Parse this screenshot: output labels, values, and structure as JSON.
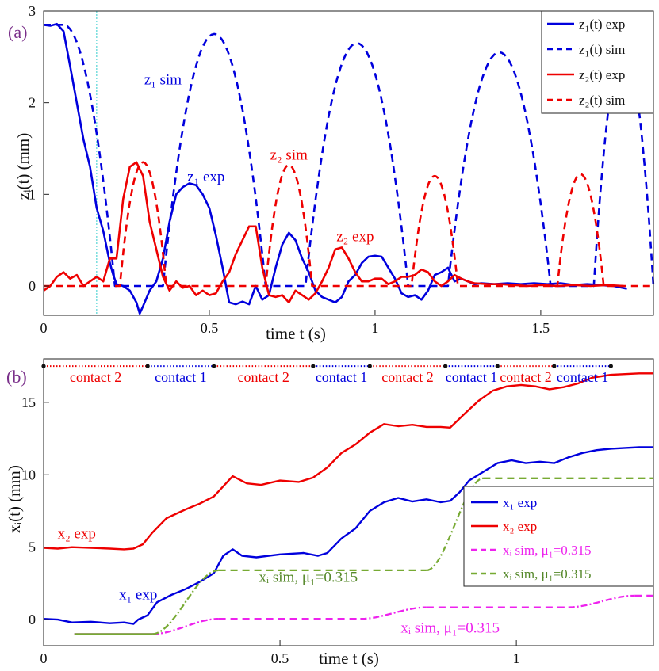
{
  "chart_data": [
    {
      "type": "line",
      "panel_label": "(a)",
      "xlabel": "time t (s)",
      "ylabel": "zᵢ(t) (mm)",
      "xlim": [
        0,
        1.84
      ],
      "ylim": [
        -0.32,
        3.0
      ],
      "xticks": [
        0,
        0.5,
        1,
        1.5
      ],
      "xtick_labels": [
        "0",
        "0.5",
        "1",
        "1.5"
      ],
      "yticks": [
        0,
        1,
        2,
        3
      ],
      "ytick_labels": [
        "0",
        "1",
        "2",
        "3"
      ],
      "vline_x": 0.16,
      "legend": [
        "z₁(t) exp",
        "z₁(t) sim",
        "z₂(t) exp",
        "z₂(t) sim"
      ],
      "annotations": [
        {
          "text": "z₁ sim",
          "x": 0.36,
          "y": 2.2,
          "color": "blue"
        },
        {
          "text": "z₁ exp",
          "x": 0.49,
          "y": 1.14,
          "color": "blue"
        },
        {
          "text": "z₂ sim",
          "x": 0.74,
          "y": 1.38,
          "color": "red"
        },
        {
          "text": "z₂ exp",
          "x": 0.94,
          "y": 0.49,
          "color": "red"
        }
      ],
      "series": [
        {
          "name": "z₁(t) exp",
          "color": "#0000dd",
          "dash": false,
          "x": [
            0,
            0.02,
            0.04,
            0.06,
            0.08,
            0.1,
            0.12,
            0.14,
            0.16,
            0.18,
            0.2,
            0.21,
            0.22,
            0.24,
            0.26,
            0.28,
            0.29,
            0.3,
            0.32,
            0.34,
            0.36,
            0.38,
            0.4,
            0.42,
            0.44,
            0.46,
            0.48,
            0.5,
            0.52,
            0.54,
            0.56,
            0.58,
            0.6,
            0.62,
            0.64,
            0.66,
            0.68,
            0.7,
            0.72,
            0.74,
            0.76,
            0.78,
            0.8,
            0.82,
            0.84,
            0.86,
            0.88,
            0.9,
            0.92,
            0.94,
            0.96,
            0.98,
            1.0,
            1.02,
            1.04,
            1.06,
            1.08,
            1.1,
            1.12,
            1.14,
            1.16,
            1.18,
            1.2,
            1.22,
            1.24,
            1.26,
            1.28,
            1.3,
            1.32,
            1.36,
            1.4,
            1.44,
            1.48,
            1.52,
            1.56,
            1.6,
            1.64,
            1.68,
            1.72,
            1.76
          ],
          "y": [
            2.85,
            2.84,
            2.86,
            2.78,
            2.4,
            2.0,
            1.6,
            1.3,
            0.85,
            0.6,
            0.25,
            0.12,
            0.02,
            0.0,
            -0.05,
            -0.18,
            -0.3,
            -0.22,
            -0.05,
            0.05,
            0.3,
            0.7,
            1.0,
            1.08,
            1.12,
            1.1,
            1.0,
            0.85,
            0.55,
            0.2,
            -0.18,
            -0.2,
            -0.17,
            -0.2,
            0.0,
            -0.15,
            -0.1,
            0.2,
            0.45,
            0.58,
            0.5,
            0.3,
            0.15,
            -0.05,
            -0.12,
            -0.15,
            -0.18,
            -0.12,
            0.05,
            0.12,
            0.25,
            0.32,
            0.33,
            0.32,
            0.2,
            0.08,
            -0.08,
            -0.12,
            -0.1,
            -0.15,
            -0.05,
            0.12,
            0.15,
            0.2,
            0.05,
            0.08,
            0.05,
            0.02,
            0.03,
            0.02,
            0.03,
            0.02,
            0.03,
            0.02,
            0.03,
            0.01,
            0.02,
            0.01,
            0.0,
            -0.03
          ]
        },
        {
          "name": "z₁(t) sim",
          "color": "#0000dd",
          "dash": true,
          "model": "bounce",
          "start": 0.0,
          "start_y": 2.85,
          "drop_from": 0.06,
          "drop_to": 0.215,
          "arcs": [
            [
              0.36,
              0.67,
              2.75
            ],
            [
              0.79,
              1.1,
              2.65
            ],
            [
              1.22,
              1.53,
              2.55
            ],
            [
              1.66,
              1.84,
              2.6
            ]
          ]
        },
        {
          "name": "z₂(t) exp",
          "color": "#ee0000",
          "dash": false,
          "x": [
            0,
            0.02,
            0.04,
            0.06,
            0.08,
            0.1,
            0.12,
            0.14,
            0.16,
            0.18,
            0.2,
            0.22,
            0.24,
            0.26,
            0.28,
            0.3,
            0.32,
            0.34,
            0.36,
            0.38,
            0.4,
            0.42,
            0.44,
            0.46,
            0.48,
            0.5,
            0.52,
            0.54,
            0.56,
            0.58,
            0.6,
            0.62,
            0.64,
            0.66,
            0.68,
            0.7,
            0.72,
            0.74,
            0.76,
            0.78,
            0.8,
            0.82,
            0.84,
            0.86,
            0.88,
            0.9,
            0.92,
            0.94,
            0.96,
            0.98,
            1.0,
            1.02,
            1.04,
            1.06,
            1.08,
            1.1,
            1.12,
            1.14,
            1.16,
            1.18,
            1.2,
            1.22,
            1.24,
            1.26,
            1.28,
            1.3,
            1.34,
            1.38,
            1.42,
            1.46,
            1.5,
            1.55,
            1.6,
            1.65,
            1.7,
            1.75
          ],
          "y": [
            -0.05,
            0.0,
            0.1,
            0.15,
            0.08,
            0.12,
            0.0,
            0.05,
            0.1,
            0.05,
            0.3,
            0.3,
            0.95,
            1.3,
            1.35,
            1.2,
            0.7,
            0.4,
            0.1,
            -0.05,
            0.05,
            -0.02,
            0.0,
            -0.1,
            -0.05,
            -0.1,
            -0.08,
            0.05,
            0.15,
            0.35,
            0.5,
            0.65,
            0.65,
            0.2,
            -0.1,
            -0.12,
            -0.1,
            -0.18,
            -0.05,
            -0.1,
            -0.15,
            -0.08,
            0.05,
            0.2,
            0.4,
            0.42,
            0.3,
            0.15,
            0.05,
            0.05,
            0.08,
            0.08,
            0.02,
            0.05,
            0.1,
            0.1,
            0.12,
            0.18,
            0.15,
            0.05,
            0.0,
            0.05,
            0.12,
            0.08,
            0.05,
            0.03,
            0.02,
            0.02,
            0.01,
            0.0,
            0.01,
            0.0,
            0.01,
            0.0,
            0.01,
            0.0
          ]
        },
        {
          "name": "z₂(t) sim",
          "color": "#ee0000",
          "dash": true,
          "model": "bounce",
          "start": 0.0,
          "start_y": 0.0,
          "arcs": [
            [
              0.23,
              0.37,
              1.35
            ],
            [
              0.67,
              0.81,
              1.32
            ],
            [
              1.11,
              1.25,
              1.2
            ],
            [
              1.55,
              1.69,
              1.22
            ]
          ]
        }
      ]
    },
    {
      "type": "line",
      "panel_label": "(b)",
      "xlabel": "time t (s)",
      "ylabel": "xᵢ(t) (mm)",
      "xlim": [
        0,
        1.29
      ],
      "ylim": [
        -1.8,
        18.0
      ],
      "xticks": [
        0,
        0.5,
        1
      ],
      "xtick_labels": [
        "0",
        "0.5",
        "1"
      ],
      "yticks": [
        0,
        5,
        10,
        15
      ],
      "ytick_labels": [
        "0",
        "5",
        "10",
        "15"
      ],
      "legend": [
        "x₁ exp",
        "x₂ exp",
        "xᵢ sim, μ₁=0.315",
        "xᵢ sim, μ₁=0.315"
      ],
      "annotations": [
        {
          "text": "x₂ exp",
          "x": 0.07,
          "y": 5.6,
          "color": "red"
        },
        {
          "text": "x₁ exp",
          "x": 0.2,
          "y": 1.4,
          "color": "blue"
        },
        {
          "text": "xᵢ sim, μ₁=0.315",
          "x": 0.56,
          "y": 2.6,
          "color": "green"
        },
        {
          "text": "xᵢ sim, μ₁=0.315",
          "x": 0.86,
          "y": -0.9,
          "color": "magenta"
        }
      ],
      "contact_phases": [
        {
          "label": "contact 2",
          "start": 0.0,
          "end": 0.22,
          "color": "red"
        },
        {
          "label": "contact 1",
          "start": 0.22,
          "end": 0.36,
          "color": "blue"
        },
        {
          "label": "contact 2",
          "start": 0.36,
          "end": 0.57,
          "color": "red"
        },
        {
          "label": "contact 1",
          "start": 0.57,
          "end": 0.69,
          "color": "blue"
        },
        {
          "label": "contact 2",
          "start": 0.69,
          "end": 0.85,
          "color": "red"
        },
        {
          "label": "contact 1",
          "start": 0.85,
          "end": 0.96,
          "color": "blue"
        },
        {
          "label": "contact 2",
          "start": 0.96,
          "end": 1.08,
          "color": "red"
        },
        {
          "label": "contact 1",
          "start": 1.08,
          "end": 1.2,
          "color": "blue"
        }
      ],
      "contact_y": 17.5,
      "series": [
        {
          "name": "x₁ exp",
          "color": "#0000dd",
          "dash": false,
          "x": [
            0,
            0.03,
            0.06,
            0.1,
            0.14,
            0.17,
            0.19,
            0.2,
            0.22,
            0.24,
            0.27,
            0.3,
            0.33,
            0.36,
            0.38,
            0.4,
            0.42,
            0.45,
            0.5,
            0.55,
            0.58,
            0.6,
            0.63,
            0.66,
            0.69,
            0.72,
            0.75,
            0.78,
            0.81,
            0.84,
            0.86,
            0.88,
            0.9,
            0.93,
            0.96,
            0.99,
            1.02,
            1.05,
            1.08,
            1.11,
            1.14,
            1.17,
            1.2,
            1.23,
            1.26,
            1.29
          ],
          "y": [
            0.05,
            0.0,
            -0.2,
            -0.15,
            -0.25,
            -0.2,
            -0.3,
            0.0,
            0.3,
            1.2,
            1.7,
            2.1,
            2.6,
            3.2,
            4.4,
            4.85,
            4.4,
            4.3,
            4.5,
            4.6,
            4.4,
            4.6,
            5.6,
            6.3,
            7.5,
            8.1,
            8.4,
            8.15,
            8.3,
            8.1,
            8.2,
            8.8,
            9.6,
            10.2,
            10.8,
            11.0,
            10.8,
            10.9,
            10.8,
            11.2,
            11.5,
            11.7,
            11.8,
            11.85,
            11.9,
            11.9
          ]
        },
        {
          "name": "x₂ exp",
          "color": "#ee0000",
          "dash": false,
          "x": [
            0,
            0.03,
            0.06,
            0.1,
            0.14,
            0.17,
            0.19,
            0.21,
            0.23,
            0.26,
            0.3,
            0.33,
            0.36,
            0.38,
            0.4,
            0.43,
            0.46,
            0.5,
            0.54,
            0.57,
            0.6,
            0.63,
            0.66,
            0.69,
            0.72,
            0.75,
            0.78,
            0.81,
            0.84,
            0.86,
            0.89,
            0.92,
            0.95,
            0.98,
            1.01,
            1.04,
            1.07,
            1.1,
            1.13,
            1.16,
            1.2,
            1.23,
            1.26,
            1.29
          ],
          "y": [
            4.95,
            4.9,
            5.0,
            4.95,
            4.9,
            4.85,
            4.9,
            5.2,
            6.0,
            7.0,
            7.6,
            8.0,
            8.5,
            9.2,
            9.9,
            9.4,
            9.3,
            9.6,
            9.5,
            9.8,
            10.5,
            11.5,
            12.1,
            12.9,
            13.5,
            13.35,
            13.45,
            13.3,
            13.3,
            13.25,
            14.2,
            15.1,
            15.8,
            16.1,
            16.2,
            16.1,
            15.9,
            16.05,
            16.3,
            16.7,
            16.9,
            16.95,
            17.0,
            17.0
          ]
        },
        {
          "name": "xᵢ sim, μ₁=0.315 (magenta)",
          "color": "#ee22ee",
          "dash": "mixed",
          "model": "steps",
          "x0": 0.065,
          "y0": -1.0,
          "ramps": [
            [
              0.23,
              0.37,
              1.05
            ],
            [
              0.67,
              0.81,
              0.8
            ],
            [
              1.11,
              1.25,
              0.8
            ]
          ],
          "end": 1.29
        },
        {
          "name": "xᵢ sim, μ₁=0.315 (green)",
          "color": "#77aa33",
          "dash": "mixed",
          "model": "steps",
          "x0": 0.065,
          "y0": -1.0,
          "ramps": [
            [
              0.23,
              0.37,
              4.4
            ],
            [
              0.81,
              0.93,
              6.35
            ]
          ],
          "end": 1.29
        }
      ]
    }
  ]
}
